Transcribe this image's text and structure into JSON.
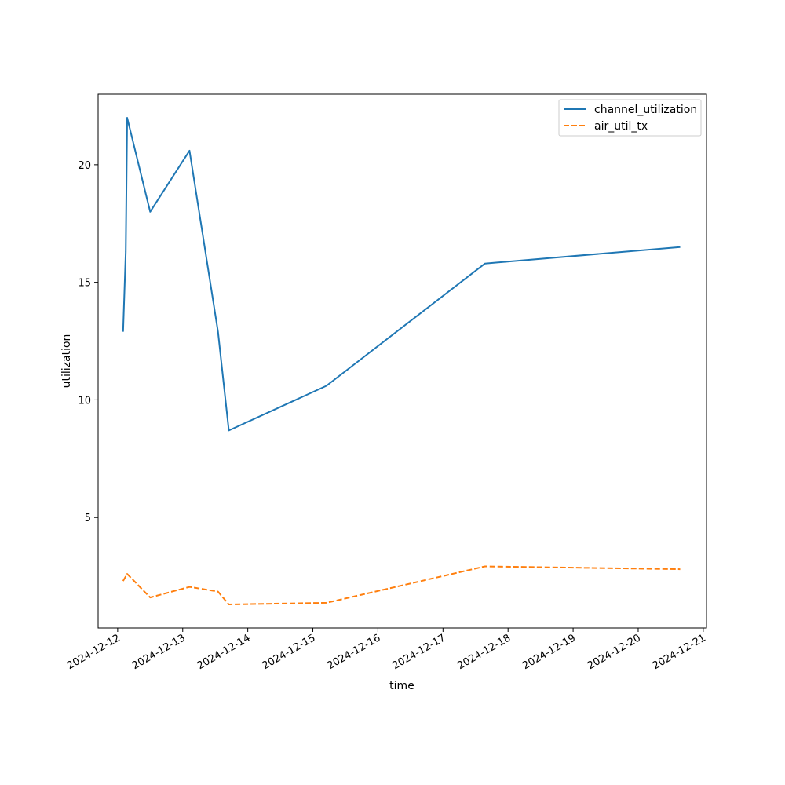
{
  "chart_data": {
    "type": "line",
    "title": "",
    "xlabel": "time",
    "ylabel": "utilization",
    "x_axis_type": "date",
    "xlim": [
      "2024-12-11T16:48",
      "2024-12-21T01:12"
    ],
    "ylim": [
      0.3,
      23
    ],
    "x_ticks": [
      "2024-12-12",
      "2024-12-13",
      "2024-12-14",
      "2024-12-15",
      "2024-12-16",
      "2024-12-17",
      "2024-12-18",
      "2024-12-19",
      "2024-12-20",
      "2024-12-21"
    ],
    "y_ticks": [
      5,
      10,
      15,
      20
    ],
    "grid": false,
    "legend_position": "top-right",
    "series": [
      {
        "name": "channel_utilization",
        "color": "#1f77b4",
        "line_style": "solid",
        "points": [
          {
            "x": "2024-12-12T02:00",
            "y": 12.9
          },
          {
            "x": "2024-12-12T03:00",
            "y": 16.3
          },
          {
            "x": "2024-12-12T03:30",
            "y": 22.0
          },
          {
            "x": "2024-12-12T12:00",
            "y": 18.0
          },
          {
            "x": "2024-12-13T02:30",
            "y": 20.6
          },
          {
            "x": "2024-12-13T13:00",
            "y": 12.9
          },
          {
            "x": "2024-12-13T17:00",
            "y": 8.7
          },
          {
            "x": "2024-12-15T05:00",
            "y": 10.6
          },
          {
            "x": "2024-12-17T15:30",
            "y": 15.8
          },
          {
            "x": "2024-12-20T15:30",
            "y": 16.5
          }
        ]
      },
      {
        "name": "air_util_tx",
        "color": "#ff7f0e",
        "line_style": "dashed",
        "points": [
          {
            "x": "2024-12-12T02:00",
            "y": 2.3
          },
          {
            "x": "2024-12-12T03:30",
            "y": 2.6
          },
          {
            "x": "2024-12-12T12:00",
            "y": 1.6
          },
          {
            "x": "2024-12-13T02:30",
            "y": 2.05
          },
          {
            "x": "2024-12-13T13:00",
            "y": 1.85
          },
          {
            "x": "2024-12-13T17:00",
            "y": 1.3
          },
          {
            "x": "2024-12-15T05:00",
            "y": 1.37
          },
          {
            "x": "2024-12-17T15:30",
            "y": 2.92
          },
          {
            "x": "2024-12-20T15:30",
            "y": 2.8
          }
        ]
      }
    ]
  }
}
